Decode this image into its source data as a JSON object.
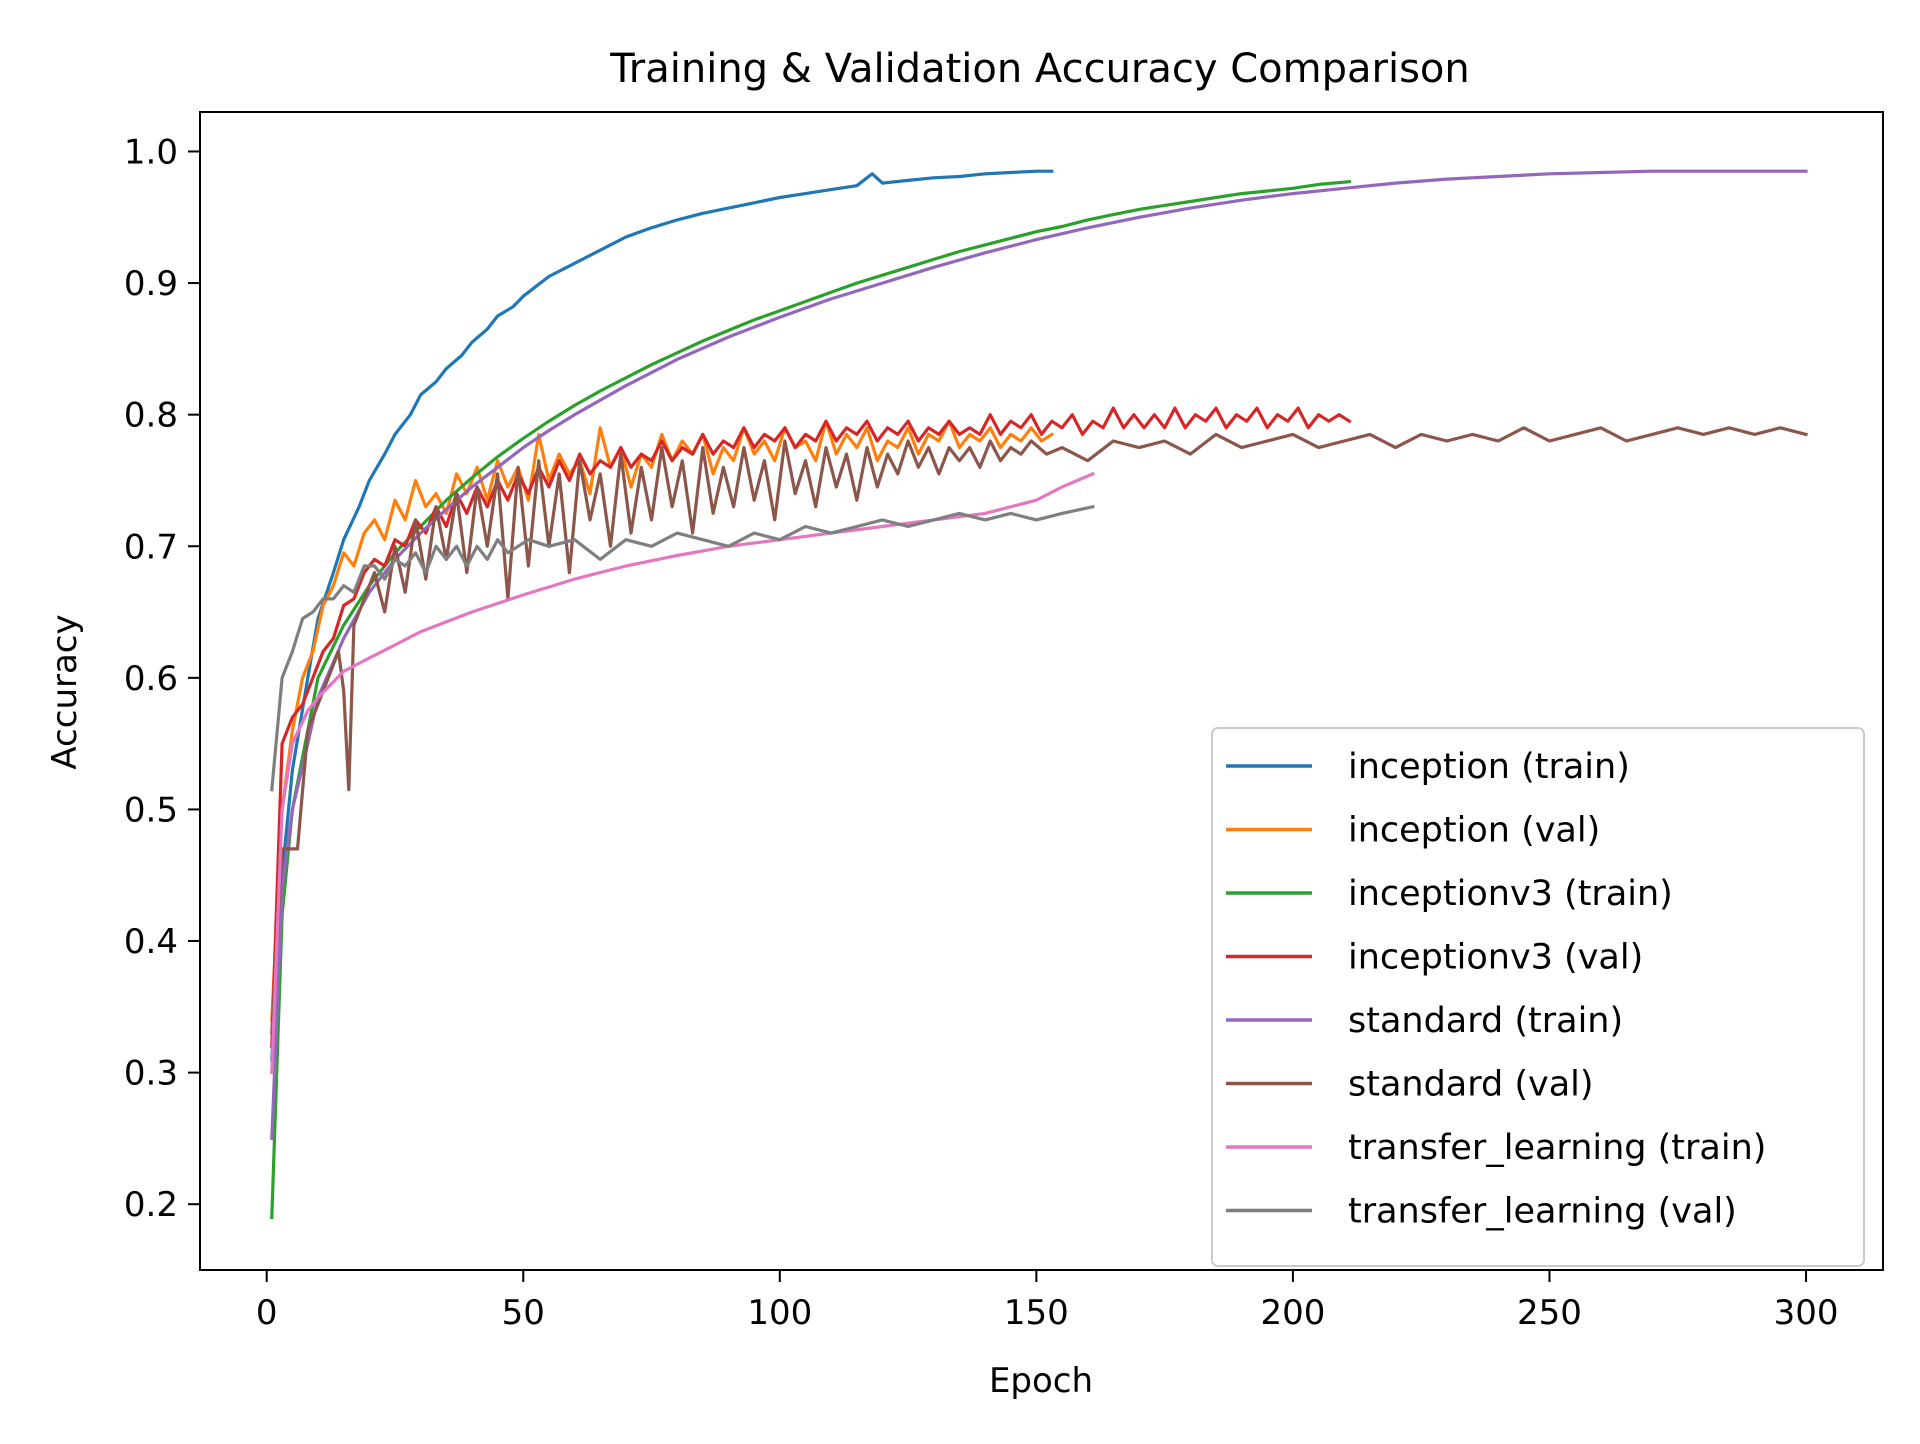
{
  "chart_data": {
    "type": "line",
    "title": "Training & Validation Accuracy Comparison",
    "xlabel": "Epoch",
    "ylabel": "Accuracy",
    "xlim": [
      -13,
      315
    ],
    "ylim": [
      0.15,
      1.03
    ],
    "xticks": [
      0,
      50,
      100,
      150,
      200,
      250,
      300
    ],
    "yticks": [
      0.2,
      0.3,
      0.4,
      0.5,
      0.6,
      0.7,
      0.8,
      0.9,
      1.0
    ],
    "grid": false,
    "legend_position": "lower-right",
    "series": [
      {
        "name": "inception (train)",
        "color": "#1f77b4",
        "x": [
          1,
          3,
          5,
          8,
          10,
          13,
          15,
          18,
          20,
          23,
          25,
          28,
          30,
          33,
          35,
          38,
          40,
          43,
          45,
          48,
          50,
          55,
          60,
          65,
          70,
          75,
          80,
          85,
          90,
          95,
          100,
          105,
          110,
          115,
          118,
          120,
          125,
          130,
          135,
          140,
          145,
          150,
          153
        ],
        "y": [
          0.31,
          0.45,
          0.53,
          0.6,
          0.645,
          0.68,
          0.705,
          0.73,
          0.75,
          0.77,
          0.785,
          0.8,
          0.815,
          0.825,
          0.835,
          0.845,
          0.855,
          0.865,
          0.875,
          0.882,
          0.89,
          0.905,
          0.915,
          0.925,
          0.935,
          0.942,
          0.948,
          0.953,
          0.957,
          0.961,
          0.965,
          0.968,
          0.971,
          0.974,
          0.983,
          0.976,
          0.978,
          0.98,
          0.981,
          0.983,
          0.984,
          0.985,
          0.985
        ]
      },
      {
        "name": "inception (val)",
        "color": "#ff7f0e",
        "x": [
          1,
          3,
          5,
          7,
          9,
          11,
          13,
          15,
          17,
          19,
          21,
          23,
          25,
          27,
          29,
          31,
          33,
          35,
          37,
          39,
          41,
          43,
          45,
          47,
          49,
          51,
          53,
          55,
          57,
          59,
          61,
          63,
          65,
          67,
          69,
          71,
          73,
          75,
          77,
          79,
          81,
          83,
          85,
          87,
          89,
          91,
          93,
          95,
          97,
          99,
          101,
          103,
          105,
          107,
          109,
          111,
          113,
          115,
          117,
          119,
          121,
          123,
          125,
          127,
          129,
          131,
          133,
          135,
          137,
          139,
          141,
          143,
          145,
          147,
          149,
          151,
          153
        ],
        "y": [
          0.34,
          0.5,
          0.56,
          0.6,
          0.62,
          0.655,
          0.67,
          0.695,
          0.685,
          0.71,
          0.72,
          0.705,
          0.735,
          0.72,
          0.75,
          0.73,
          0.74,
          0.725,
          0.755,
          0.74,
          0.76,
          0.735,
          0.765,
          0.745,
          0.76,
          0.735,
          0.785,
          0.75,
          0.77,
          0.755,
          0.765,
          0.74,
          0.79,
          0.76,
          0.775,
          0.745,
          0.77,
          0.76,
          0.785,
          0.765,
          0.78,
          0.77,
          0.785,
          0.755,
          0.775,
          0.765,
          0.79,
          0.77,
          0.78,
          0.765,
          0.79,
          0.775,
          0.78,
          0.765,
          0.795,
          0.77,
          0.785,
          0.775,
          0.79,
          0.765,
          0.78,
          0.775,
          0.79,
          0.77,
          0.785,
          0.78,
          0.795,
          0.775,
          0.785,
          0.78,
          0.79,
          0.775,
          0.785,
          0.78,
          0.79,
          0.78,
          0.785
        ]
      },
      {
        "name": "inceptionv3 (train)",
        "color": "#2ca02c",
        "x": [
          1,
          3,
          5,
          8,
          10,
          15,
          20,
          25,
          30,
          35,
          40,
          45,
          50,
          55,
          60,
          65,
          70,
          75,
          80,
          85,
          90,
          95,
          100,
          105,
          110,
          115,
          120,
          125,
          130,
          135,
          140,
          145,
          150,
          155,
          160,
          165,
          170,
          175,
          180,
          185,
          190,
          195,
          200,
          205,
          211
        ],
        "y": [
          0.19,
          0.42,
          0.5,
          0.56,
          0.6,
          0.64,
          0.67,
          0.695,
          0.715,
          0.735,
          0.752,
          0.768,
          0.782,
          0.795,
          0.807,
          0.818,
          0.828,
          0.838,
          0.847,
          0.856,
          0.864,
          0.872,
          0.879,
          0.886,
          0.893,
          0.9,
          0.906,
          0.912,
          0.918,
          0.924,
          0.929,
          0.934,
          0.939,
          0.943,
          0.948,
          0.952,
          0.956,
          0.959,
          0.962,
          0.965,
          0.968,
          0.97,
          0.972,
          0.975,
          0.977
        ]
      },
      {
        "name": "inceptionv3 (val)",
        "color": "#d62728",
        "x": [
          1,
          3,
          5,
          7,
          9,
          11,
          13,
          15,
          17,
          19,
          21,
          23,
          25,
          27,
          29,
          31,
          33,
          35,
          37,
          39,
          41,
          43,
          45,
          47,
          49,
          51,
          53,
          55,
          57,
          59,
          61,
          63,
          65,
          67,
          69,
          71,
          73,
          75,
          77,
          79,
          81,
          83,
          85,
          87,
          89,
          91,
          93,
          95,
          97,
          99,
          101,
          103,
          105,
          107,
          109,
          111,
          113,
          115,
          117,
          119,
          121,
          123,
          125,
          127,
          129,
          131,
          133,
          135,
          137,
          139,
          141,
          143,
          145,
          147,
          149,
          151,
          153,
          155,
          157,
          159,
          161,
          163,
          165,
          167,
          169,
          171,
          173,
          175,
          177,
          179,
          181,
          183,
          185,
          187,
          189,
          191,
          193,
          195,
          197,
          199,
          201,
          203,
          205,
          207,
          209,
          211
        ],
        "y": [
          0.32,
          0.55,
          0.57,
          0.58,
          0.6,
          0.62,
          0.63,
          0.655,
          0.66,
          0.68,
          0.69,
          0.685,
          0.705,
          0.7,
          0.72,
          0.71,
          0.73,
          0.715,
          0.74,
          0.725,
          0.745,
          0.73,
          0.75,
          0.735,
          0.755,
          0.74,
          0.76,
          0.745,
          0.765,
          0.75,
          0.77,
          0.755,
          0.765,
          0.76,
          0.775,
          0.76,
          0.77,
          0.765,
          0.78,
          0.765,
          0.775,
          0.77,
          0.785,
          0.77,
          0.78,
          0.775,
          0.79,
          0.775,
          0.785,
          0.78,
          0.79,
          0.775,
          0.785,
          0.78,
          0.795,
          0.78,
          0.79,
          0.785,
          0.795,
          0.78,
          0.79,
          0.785,
          0.795,
          0.78,
          0.79,
          0.785,
          0.795,
          0.785,
          0.79,
          0.785,
          0.8,
          0.785,
          0.795,
          0.79,
          0.8,
          0.785,
          0.795,
          0.79,
          0.8,
          0.785,
          0.795,
          0.79,
          0.805,
          0.79,
          0.8,
          0.79,
          0.8,
          0.79,
          0.805,
          0.79,
          0.8,
          0.795,
          0.805,
          0.79,
          0.8,
          0.795,
          0.805,
          0.79,
          0.8,
          0.795,
          0.805,
          0.79,
          0.8,
          0.795,
          0.8,
          0.795
        ]
      },
      {
        "name": "standard (train)",
        "color": "#9467bd",
        "x": [
          1,
          3,
          5,
          8,
          10,
          15,
          20,
          25,
          30,
          35,
          40,
          45,
          50,
          55,
          60,
          65,
          70,
          75,
          80,
          90,
          100,
          110,
          120,
          130,
          140,
          150,
          160,
          170,
          180,
          190,
          200,
          210,
          220,
          230,
          240,
          250,
          260,
          270,
          280,
          290,
          300
        ],
        "y": [
          0.25,
          0.44,
          0.5,
          0.55,
          0.585,
          0.63,
          0.665,
          0.69,
          0.71,
          0.728,
          0.745,
          0.76,
          0.775,
          0.788,
          0.8,
          0.811,
          0.822,
          0.832,
          0.842,
          0.859,
          0.874,
          0.888,
          0.9,
          0.912,
          0.923,
          0.933,
          0.942,
          0.95,
          0.957,
          0.963,
          0.968,
          0.972,
          0.976,
          0.979,
          0.981,
          0.983,
          0.984,
          0.985,
          0.985,
          0.985,
          0.985
        ]
      },
      {
        "name": "standard (val)",
        "color": "#8c564b",
        "x": [
          1,
          3,
          5,
          6,
          8,
          10,
          12,
          14,
          15,
          16,
          17,
          19,
          21,
          23,
          25,
          27,
          29,
          31,
          33,
          35,
          37,
          39,
          41,
          43,
          45,
          47,
          49,
          51,
          53,
          55,
          57,
          59,
          61,
          63,
          65,
          67,
          69,
          71,
          73,
          75,
          77,
          79,
          81,
          83,
          85,
          87,
          89,
          91,
          93,
          95,
          97,
          99,
          101,
          103,
          105,
          107,
          109,
          111,
          113,
          115,
          117,
          119,
          121,
          123,
          125,
          127,
          129,
          131,
          133,
          135,
          137,
          139,
          141,
          143,
          145,
          147,
          149,
          152,
          155,
          160,
          165,
          170,
          175,
          180,
          185,
          190,
          195,
          200,
          205,
          210,
          215,
          220,
          225,
          230,
          235,
          240,
          245,
          250,
          255,
          260,
          265,
          270,
          275,
          280,
          285,
          290,
          295,
          300
        ],
        "y": [
          0.33,
          0.47,
          0.47,
          0.47,
          0.56,
          0.58,
          0.6,
          0.62,
          0.59,
          0.515,
          0.64,
          0.66,
          0.68,
          0.65,
          0.7,
          0.665,
          0.72,
          0.675,
          0.73,
          0.69,
          0.74,
          0.68,
          0.745,
          0.7,
          0.755,
          0.66,
          0.76,
          0.685,
          0.765,
          0.7,
          0.755,
          0.68,
          0.765,
          0.72,
          0.755,
          0.7,
          0.77,
          0.71,
          0.76,
          0.72,
          0.775,
          0.73,
          0.765,
          0.71,
          0.775,
          0.725,
          0.76,
          0.73,
          0.775,
          0.735,
          0.765,
          0.72,
          0.78,
          0.74,
          0.765,
          0.73,
          0.775,
          0.745,
          0.77,
          0.735,
          0.775,
          0.745,
          0.77,
          0.755,
          0.78,
          0.76,
          0.775,
          0.755,
          0.775,
          0.765,
          0.775,
          0.76,
          0.78,
          0.765,
          0.775,
          0.77,
          0.78,
          0.77,
          0.775,
          0.765,
          0.78,
          0.775,
          0.78,
          0.77,
          0.785,
          0.775,
          0.78,
          0.785,
          0.775,
          0.78,
          0.785,
          0.775,
          0.785,
          0.78,
          0.785,
          0.78,
          0.79,
          0.78,
          0.785,
          0.79,
          0.78,
          0.785,
          0.79,
          0.785,
          0.79,
          0.785,
          0.79,
          0.785
        ]
      },
      {
        "name": "transfer_learning (train)",
        "color": "#e377c2",
        "x": [
          1,
          3,
          5,
          8,
          10,
          15,
          20,
          25,
          30,
          40,
          50,
          60,
          70,
          80,
          90,
          100,
          110,
          120,
          130,
          140,
          150,
          155,
          161
        ],
        "y": [
          0.3,
          0.5,
          0.55,
          0.575,
          0.585,
          0.605,
          0.615,
          0.625,
          0.635,
          0.65,
          0.663,
          0.675,
          0.685,
          0.693,
          0.7,
          0.705,
          0.71,
          0.715,
          0.72,
          0.725,
          0.735,
          0.745,
          0.755
        ]
      },
      {
        "name": "transfer_learning (val)",
        "color": "#7f7f7f",
        "x": [
          1,
          3,
          5,
          7,
          9,
          11,
          13,
          15,
          17,
          19,
          21,
          23,
          25,
          27,
          29,
          31,
          33,
          35,
          37,
          39,
          41,
          43,
          45,
          47,
          49,
          51,
          55,
          60,
          65,
          70,
          75,
          80,
          85,
          90,
          95,
          100,
          105,
          110,
          115,
          120,
          125,
          130,
          135,
          140,
          145,
          150,
          155,
          161
        ],
        "y": [
          0.515,
          0.6,
          0.62,
          0.645,
          0.65,
          0.66,
          0.66,
          0.67,
          0.665,
          0.685,
          0.685,
          0.675,
          0.69,
          0.685,
          0.695,
          0.68,
          0.7,
          0.69,
          0.7,
          0.685,
          0.7,
          0.69,
          0.705,
          0.695,
          0.7,
          0.705,
          0.7,
          0.705,
          0.69,
          0.705,
          0.7,
          0.71,
          0.705,
          0.7,
          0.71,
          0.705,
          0.715,
          0.71,
          0.715,
          0.72,
          0.715,
          0.72,
          0.725,
          0.72,
          0.725,
          0.72,
          0.725,
          0.73
        ]
      }
    ]
  }
}
